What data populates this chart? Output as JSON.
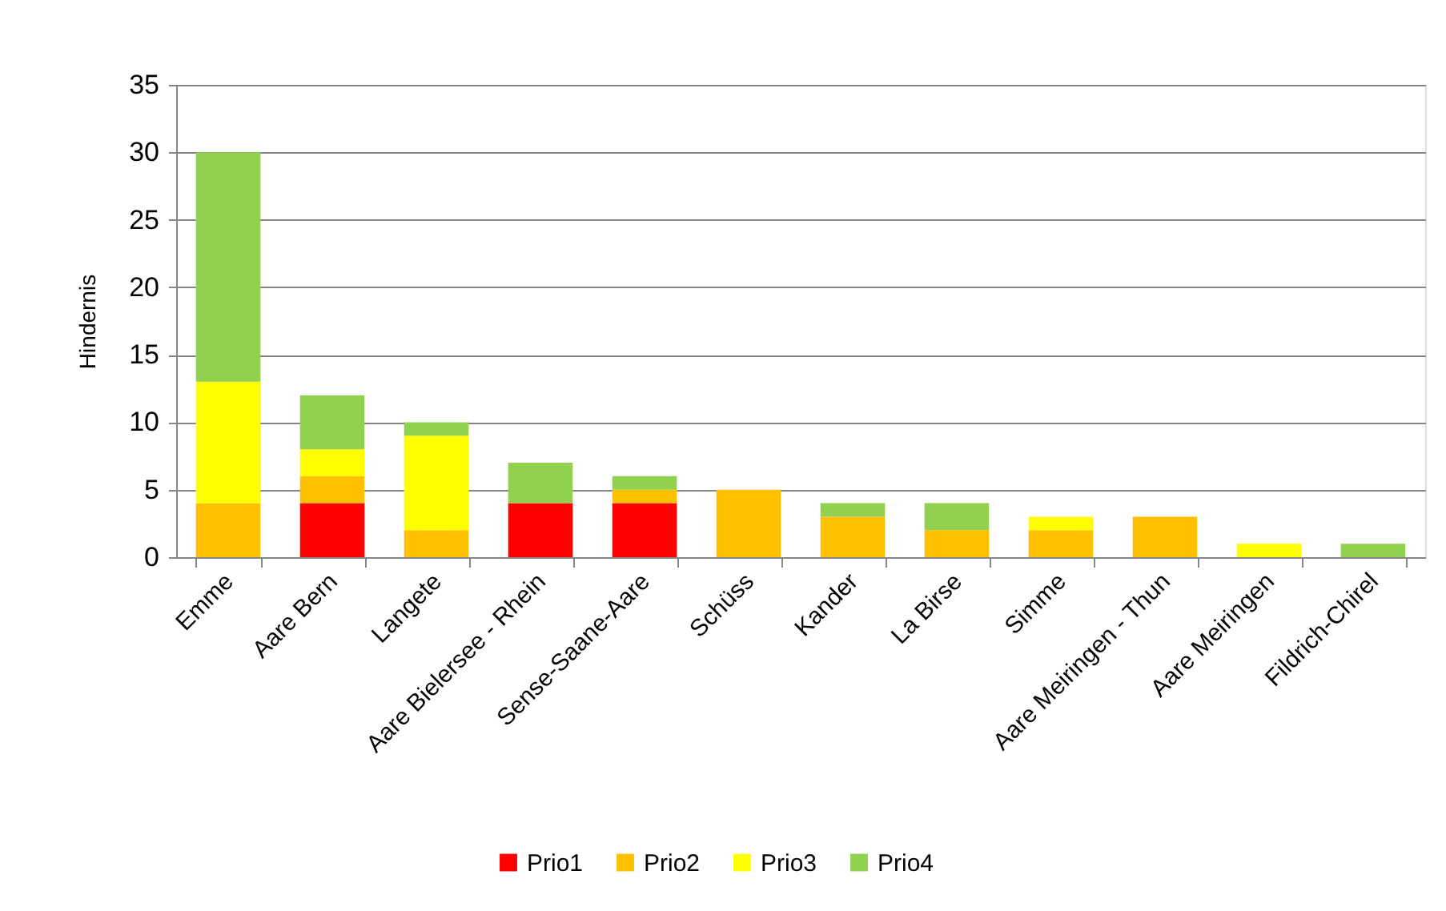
{
  "chart_data": {
    "type": "bar",
    "stacked": true,
    "ylabel": "Hindernis",
    "categories": [
      "Emme",
      "Aare Bern",
      "Langete",
      "Aare Bielersee - Rhein",
      "Sense-Saane-Aare",
      "Schüss",
      "Kander",
      "La Birse",
      "Simme",
      "Aare Meiringen - Thun",
      "Aare Meiringen",
      "Fildrich-Chirel"
    ],
    "series": [
      {
        "name": "Prio1",
        "color": "#ff0000",
        "values": [
          null,
          4,
          null,
          4,
          4,
          null,
          null,
          null,
          null,
          null,
          null,
          null
        ]
      },
      {
        "name": "Prio2",
        "color": "#ffc000",
        "values": [
          4,
          2,
          2,
          null,
          1,
          5,
          3,
          2,
          2,
          3,
          null,
          null
        ]
      },
      {
        "name": "Prio3",
        "color": "#ffff00",
        "values": [
          9,
          2,
          7,
          null,
          null,
          null,
          null,
          null,
          1,
          null,
          1,
          null
        ]
      },
      {
        "name": "Prio4",
        "color": "#92d050",
        "values": [
          17,
          4,
          1,
          3,
          1,
          null,
          1,
          2,
          null,
          null,
          null,
          1
        ]
      }
    ],
    "ylim": [
      0,
      35
    ],
    "yticks": [
      0,
      5,
      10,
      15,
      20,
      25,
      30,
      35
    ],
    "grid": "y",
    "legend": "bottom"
  }
}
